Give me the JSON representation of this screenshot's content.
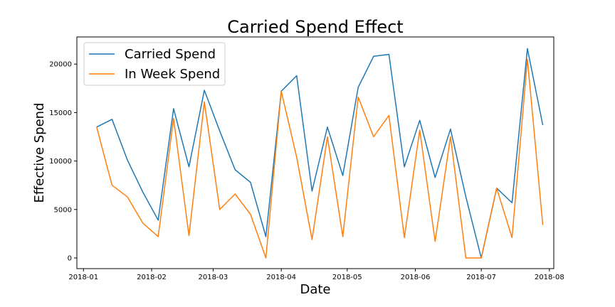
{
  "chart_data": {
    "type": "line",
    "title": "Carried Spend Effect",
    "xlabel": "Date",
    "ylabel": "Effective Spend",
    "x_axis_type": "date",
    "xlim": [
      "2017-12-29",
      "2018-08-03"
    ],
    "ylim": [
      -1100,
      22800
    ],
    "x_ticks": [
      {
        "date": "2018-01-01",
        "label": "2018-01"
      },
      {
        "date": "2018-02-01",
        "label": "2018-02"
      },
      {
        "date": "2018-03-01",
        "label": "2018-03"
      },
      {
        "date": "2018-04-01",
        "label": "2018-04"
      },
      {
        "date": "2018-05-01",
        "label": "2018-05"
      },
      {
        "date": "2018-06-01",
        "label": "2018-06"
      },
      {
        "date": "2018-07-01",
        "label": "2018-07"
      },
      {
        "date": "2018-08-01",
        "label": "2018-08"
      }
    ],
    "y_ticks": [
      0,
      5000,
      10000,
      15000,
      20000
    ],
    "grid": false,
    "legend_position": "top-left",
    "x": [
      "2018-01-07",
      "2018-01-14",
      "2018-01-21",
      "2018-01-28",
      "2018-02-04",
      "2018-02-11",
      "2018-02-18",
      "2018-02-25",
      "2018-03-04",
      "2018-03-11",
      "2018-03-18",
      "2018-03-25",
      "2018-04-01",
      "2018-04-08",
      "2018-04-15",
      "2018-04-22",
      "2018-04-29",
      "2018-05-06",
      "2018-05-13",
      "2018-05-20",
      "2018-05-27",
      "2018-06-03",
      "2018-06-10",
      "2018-06-17",
      "2018-06-24",
      "2018-07-01",
      "2018-07-08",
      "2018-07-15",
      "2018-07-22",
      "2018-07-29"
    ],
    "series": [
      {
        "name": "Carried Spend",
        "color": "#1f77b4",
        "values": [
          13500,
          14300,
          10100,
          6800,
          3900,
          15400,
          9400,
          17300,
          13100,
          9100,
          7800,
          2200,
          17200,
          18800,
          6900,
          13500,
          8500,
          17600,
          20800,
          21000,
          9400,
          14200,
          8300,
          13300,
          6300,
          0,
          7200,
          5700,
          21600,
          13700
        ]
      },
      {
        "name": "In Week Spend",
        "color": "#ff7f0e",
        "values": [
          13500,
          7500,
          6300,
          3600,
          2200,
          14400,
          2300,
          16100,
          5000,
          6600,
          4500,
          0,
          17200,
          10400,
          1900,
          12500,
          2200,
          16600,
          12500,
          14700,
          2100,
          13200,
          1700,
          12500,
          0,
          0,
          7200,
          2100,
          20500,
          3400
        ]
      }
    ]
  }
}
